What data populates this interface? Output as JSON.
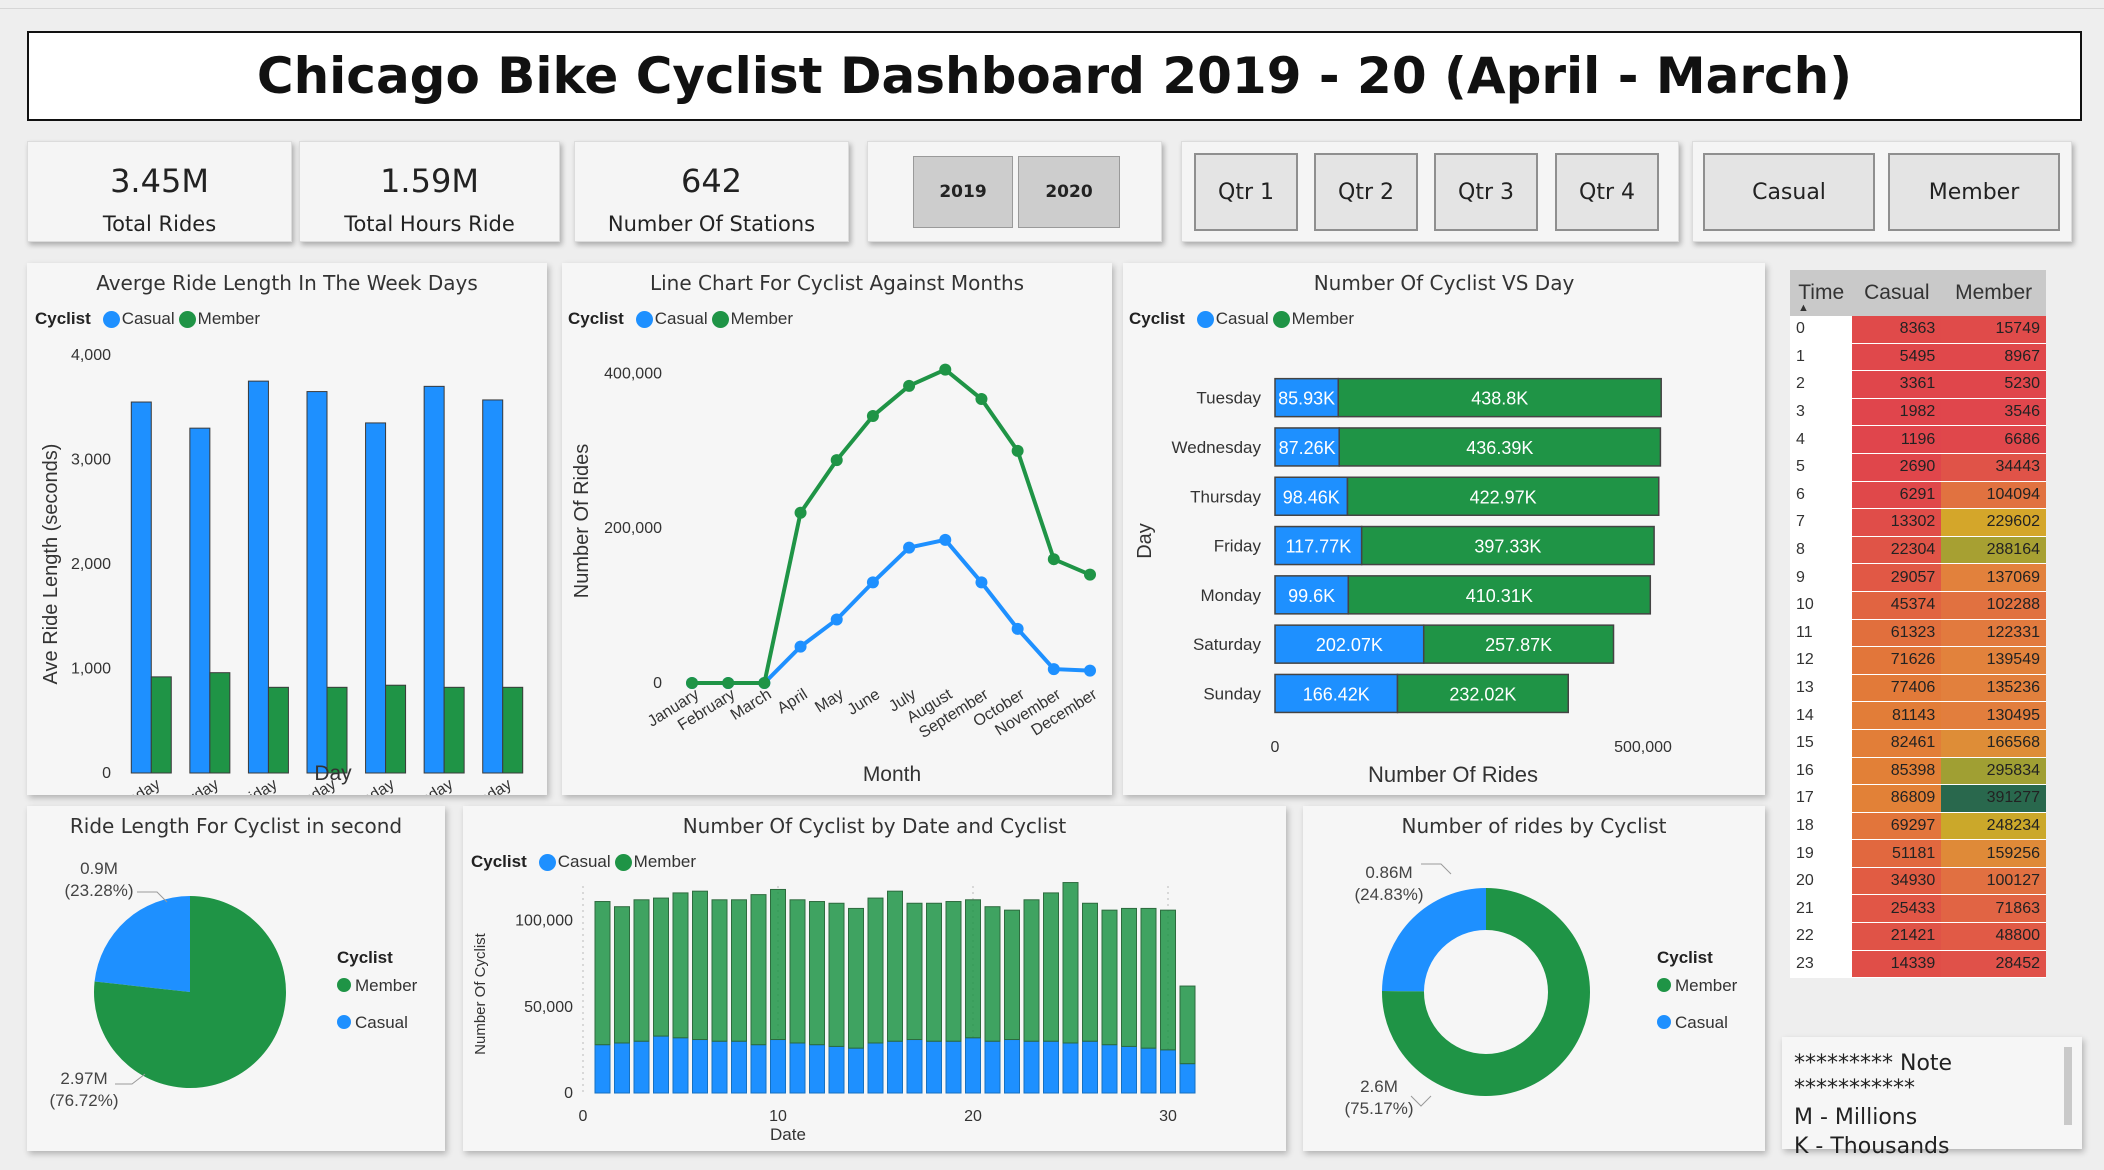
{
  "title": "Chicago Bike Cyclist Dashboard 2019 - 20 (April - March)",
  "colors": {
    "casual": "#1e90ff",
    "member": "#1f9446"
  },
  "kpis": [
    {
      "value": "3.45M",
      "label": "Total Rides"
    },
    {
      "value": "1.59M",
      "label": "Total Hours Ride"
    },
    {
      "value": "642",
      "label": "Number Of Stations"
    }
  ],
  "slicers": {
    "years": [
      "2019",
      "2020"
    ],
    "quarters": [
      "Qtr 1",
      "Qtr 2",
      "Qtr 3",
      "Qtr 4"
    ],
    "types": [
      "Casual",
      "Member"
    ]
  },
  "legend": {
    "title": "Cyclist",
    "casual": "Casual",
    "member": "Member"
  },
  "note": {
    "title": "********* Note ***********",
    "lines": [
      "M - Millions",
      "K - Thousands"
    ]
  },
  "chart_data": [
    {
      "type": "bar",
      "title": "Averge Ride Length In The Week Days",
      "xlabel": "Day",
      "ylabel": "Ave Ride Length (seconds)",
      "ylim": [
        0,
        4000
      ],
      "yticks": [
        "0",
        "1,000",
        "2,000",
        "3,000",
        "4,000"
      ],
      "categories": [
        "Sunday",
        "Saturday",
        "Friday",
        "Thursday",
        "Monday",
        "Wednesday",
        "Tuesday"
      ],
      "series": [
        {
          "name": "Casual",
          "values": [
            3550,
            3300,
            3750,
            3650,
            3350,
            3700,
            3570
          ]
        },
        {
          "name": "Member",
          "values": [
            920,
            960,
            820,
            820,
            840,
            820,
            820
          ]
        }
      ]
    },
    {
      "type": "line",
      "title": "Line Chart For Cyclist Against Months",
      "xlabel": "Month",
      "ylabel": "Number Of Rides",
      "ylim": [
        0,
        420000
      ],
      "yticks": [
        "0",
        "200,000",
        "400,000"
      ],
      "categories": [
        "January",
        "February",
        "March",
        "April",
        "May",
        "June",
        "July",
        "August",
        "September",
        "October",
        "November",
        "December"
      ],
      "series": [
        {
          "name": "Casual",
          "values": [
            0,
            0,
            0,
            47000,
            82000,
            130000,
            175000,
            185000,
            130000,
            70000,
            18000,
            16000
          ]
        },
        {
          "name": "Member",
          "values": [
            0,
            0,
            0,
            220000,
            288000,
            345000,
            384000,
            405000,
            367000,
            300000,
            160000,
            140000
          ]
        }
      ]
    },
    {
      "type": "bar",
      "title": "Number Of Cyclist VS Day",
      "xlabel": "Number Of Rides",
      "ylabel": "Day",
      "xlim": [
        0,
        500000
      ],
      "xticks": [
        "0",
        "500,000"
      ],
      "categories": [
        "Tuesday",
        "Wednesday",
        "Thursday",
        "Friday",
        "Monday",
        "Saturday",
        "Sunday"
      ],
      "series": [
        {
          "name": "Casual",
          "values": [
            85930,
            87260,
            98460,
            117770,
            99600,
            202070,
            166420
          ],
          "labels": [
            "85.93K",
            "87.26K",
            "98.46K",
            "117.77K",
            "99.6K",
            "202.07K",
            "166.42K"
          ]
        },
        {
          "name": "Member",
          "values": [
            438800,
            436390,
            422970,
            397330,
            410310,
            257870,
            232020
          ],
          "labels": [
            "438.8K",
            "436.39K",
            "422.97K",
            "397.33K",
            "410.31K",
            "257.87K",
            "232.02K"
          ]
        }
      ]
    },
    {
      "type": "pie",
      "title": "Ride Length For Cyclist in second",
      "legend_title": "Cyclist",
      "legend": [
        "Member",
        "Casual"
      ],
      "slices": [
        {
          "name": "Casual",
          "value": 0.9,
          "pct": 23.28,
          "label": "0.9M",
          "pct_label": "(23.28%)"
        },
        {
          "name": "Member",
          "value": 2.97,
          "pct": 76.72,
          "label": "2.97M",
          "pct_label": "(76.72%)"
        }
      ]
    },
    {
      "type": "area",
      "title": "Number Of Cyclist by Date and Cyclist",
      "xlabel": "Date",
      "ylabel": "Number Of Cyclist",
      "xlim": [
        0,
        31
      ],
      "ylim": [
        0,
        120000
      ],
      "xticks": [
        "0",
        "10",
        "20",
        "30"
      ],
      "yticks": [
        "0",
        "50,000",
        "100,000"
      ],
      "x": [
        1,
        2,
        3,
        4,
        5,
        6,
        7,
        8,
        9,
        10,
        11,
        12,
        13,
        14,
        15,
        16,
        17,
        18,
        19,
        20,
        21,
        22,
        23,
        24,
        25,
        26,
        27,
        28,
        29,
        30,
        31
      ],
      "series": [
        {
          "name": "Casual",
          "values": [
            28000,
            29000,
            30000,
            33000,
            32000,
            31000,
            30000,
            30000,
            28000,
            31000,
            29000,
            28000,
            27000,
            26000,
            29000,
            30000,
            31000,
            30000,
            30000,
            32000,
            30000,
            31000,
            30000,
            30000,
            29000,
            30000,
            28000,
            27000,
            26000,
            25000,
            17000
          ]
        },
        {
          "name": "Member",
          "values": [
            111000,
            108000,
            112000,
            113000,
            116000,
            117000,
            112000,
            112000,
            115000,
            118000,
            112000,
            111000,
            110000,
            107000,
            113000,
            117000,
            110000,
            110000,
            111000,
            112000,
            108000,
            106000,
            112000,
            116000,
            122000,
            110000,
            106000,
            107000,
            107000,
            106000,
            62000
          ]
        }
      ]
    },
    {
      "type": "pie",
      "title": "Number of rides by Cyclist",
      "donut": true,
      "legend_title": "Cyclist",
      "legend": [
        "Member",
        "Casual"
      ],
      "slices": [
        {
          "name": "Casual",
          "value": 0.86,
          "pct": 24.83,
          "label": "0.86M",
          "pct_label": "(24.83%)"
        },
        {
          "name": "Member",
          "value": 2.6,
          "pct": 75.17,
          "label": "2.6M",
          "pct_label": "(75.17%)"
        }
      ]
    },
    {
      "type": "table",
      "columns": [
        "Time",
        "Casual",
        "Member"
      ],
      "rows": [
        [
          0,
          8363,
          15749
        ],
        [
          1,
          5495,
          8967
        ],
        [
          2,
          3361,
          5230
        ],
        [
          3,
          1982,
          3546
        ],
        [
          4,
          1196,
          6686
        ],
        [
          5,
          2690,
          34443
        ],
        [
          6,
          6291,
          104094
        ],
        [
          7,
          13302,
          229602
        ],
        [
          8,
          22304,
          288164
        ],
        [
          9,
          29057,
          137069
        ],
        [
          10,
          45374,
          102288
        ],
        [
          11,
          61323,
          122331
        ],
        [
          12,
          71626,
          139549
        ],
        [
          13,
          77406,
          135236
        ],
        [
          14,
          81143,
          130495
        ],
        [
          15,
          82461,
          166568
        ],
        [
          16,
          85398,
          295834
        ],
        [
          17,
          86809,
          391277
        ],
        [
          18,
          69297,
          248234
        ],
        [
          19,
          51181,
          159256
        ],
        [
          20,
          34930,
          100127
        ],
        [
          21,
          25433,
          71863
        ],
        [
          22,
          21421,
          48800
        ],
        [
          23,
          14339,
          28452
        ]
      ]
    }
  ]
}
